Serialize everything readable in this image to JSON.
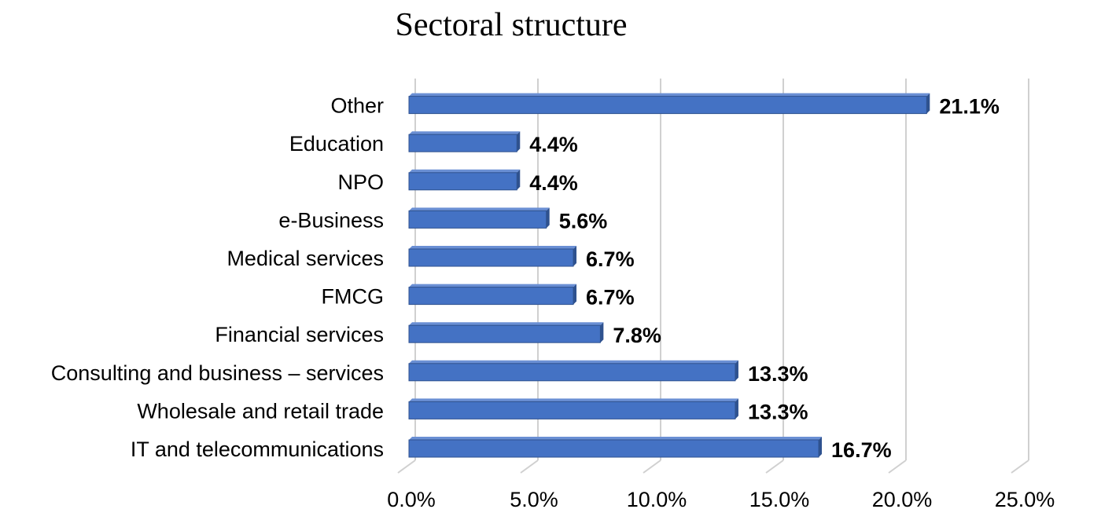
{
  "chart_data": {
    "type": "bar",
    "orientation": "horizontal",
    "title": "Sectoral structure",
    "categories": [
      "IT and telecommunications",
      "Wholesale and retail trade",
      "Consulting and business – services",
      "Financial services",
      "FMCG",
      "Medical services",
      "e-Business",
      "NPO",
      "Education",
      "Other"
    ],
    "values": [
      16.7,
      13.3,
      13.3,
      7.8,
      6.7,
      6.7,
      5.6,
      4.4,
      4.4,
      21.1
    ],
    "value_labels": [
      "16.7%",
      "13.3%",
      "13.3%",
      "7.8%",
      "6.7%",
      "6.7%",
      "5.6%",
      "4.4%",
      "4.4%",
      "21.1%"
    ],
    "xlim": [
      0,
      25
    ],
    "xticks": [
      0,
      5,
      10,
      15,
      20,
      25
    ],
    "xtick_labels": [
      "0.0%",
      "5.0%",
      "10.0%",
      "15.0%",
      "20.0%",
      "25.0%"
    ],
    "xlabel": "",
    "ylabel": "",
    "grid": true,
    "legend": "none",
    "bar_color": "#4472C4",
    "bar_edge_color": "#2F528F"
  }
}
